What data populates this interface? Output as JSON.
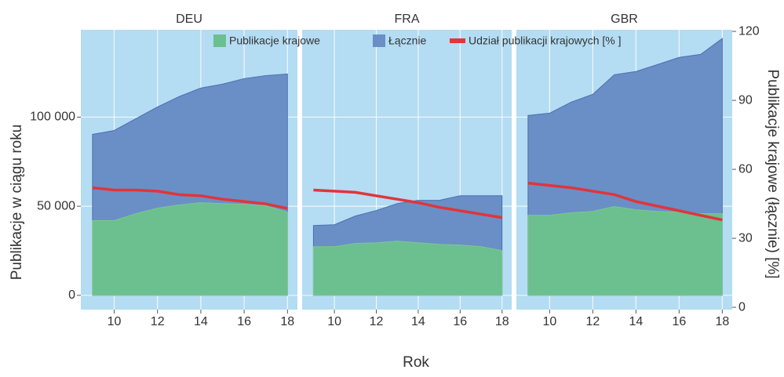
{
  "chart_data": {
    "type": "area",
    "xlabel": "Rok",
    "ylabel": "Publikacje w ciągu roku",
    "y2label": "Publikacje krajowe (łącznie) [%]",
    "xlim": [
      8.46,
      18.46
    ],
    "xticks": [
      10,
      12,
      14,
      16,
      18
    ],
    "ylim": [
      -8000,
      149000
    ],
    "yticks": [
      0,
      {
        "value": 50000,
        "label": "50 000"
      },
      {
        "value": 100000,
        "label": "100 000"
      }
    ],
    "y2lim": [
      -1,
      120.7
    ],
    "y2ticks": [
      0,
      30,
      60,
      90,
      120
    ],
    "grid": true,
    "legend": "top",
    "series": [
      {
        "name": "Publikacje krajowe",
        "color": "#6cbf8e"
      },
      {
        "name": "Łącznie",
        "color": "#6a8fc6"
      },
      {
        "name": "Udział publikacji krajowych [% ]",
        "color": "#e0353a",
        "axis": "y2"
      }
    ],
    "panels": [
      {
        "title": "DEU",
        "x": [
          9,
          10,
          11,
          12,
          13,
          14,
          15,
          16,
          17,
          18
        ],
        "series": [
          [
            41900,
            41900,
            45800,
            48900,
            50700,
            52000,
            51500,
            51100,
            50200,
            46700
          ],
          [
            90300,
            92500,
            99100,
            105700,
            111500,
            116300,
            118500,
            121600,
            123300,
            124200
          ],
          [
            52,
            51,
            51,
            50.5,
            49,
            48.5,
            47,
            46,
            45,
            43
          ]
        ]
      },
      {
        "title": "FRA",
        "x": [
          9,
          10,
          11,
          12,
          13,
          14,
          15,
          16,
          17,
          18
        ],
        "series": [
          [
            27300,
            27300,
            29100,
            29500,
            30400,
            29500,
            28600,
            28200,
            27300,
            25100
          ],
          [
            39200,
            39600,
            44500,
            47600,
            51500,
            53300,
            53300,
            55900,
            55900,
            55900
          ],
          [
            51,
            50.5,
            50,
            48.5,
            47,
            45.5,
            43.5,
            42,
            40.5,
            39
          ]
        ]
      },
      {
        "title": "GBR",
        "x": [
          9,
          10,
          11,
          12,
          13,
          14,
          15,
          16,
          17,
          18
        ],
        "series": [
          [
            44900,
            44900,
            46300,
            47100,
            49800,
            48000,
            47100,
            46700,
            45800,
            45800
          ],
          [
            100900,
            102200,
            108400,
            112800,
            123800,
            125600,
            129500,
            133500,
            135200,
            144100
          ],
          [
            54,
            53,
            52,
            50.5,
            49,
            46,
            44,
            42,
            40,
            38
          ]
        ]
      }
    ]
  }
}
